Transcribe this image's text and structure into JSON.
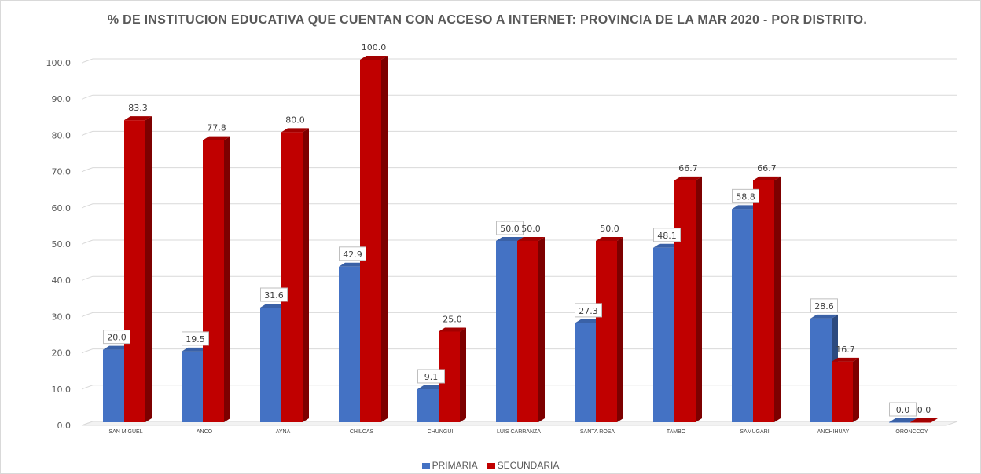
{
  "chart_data": {
    "type": "bar",
    "title": "% DE INSTITUCION EDUCATIVA QUE CUENTAN CON ACCESO A INTERNET: PROVINCIA DE LA MAR 2020 - POR DISTRITO.",
    "categories": [
      "SAN MIGUEL",
      "ANCO",
      "AYNA",
      "CHILCAS",
      "CHUNGUI",
      "LUIS CARRANZA",
      "SANTA ROSA",
      "TAMBO",
      "SAMUGARI",
      "ANCHIHUAY",
      "ORONCCOY"
    ],
    "series": [
      {
        "name": "PRIMARIA",
        "color": "#4472c4",
        "values": [
          20.0,
          19.5,
          31.6,
          42.9,
          9.1,
          50.0,
          27.3,
          48.1,
          58.8,
          28.6,
          0.0
        ]
      },
      {
        "name": "SECUNDARIA",
        "color": "#c00000",
        "values": [
          83.3,
          77.8,
          80.0,
          100.0,
          25.0,
          50.0,
          50.0,
          66.7,
          66.7,
          16.7,
          0.0
        ]
      }
    ],
    "ylim": [
      0,
      100
    ],
    "yticks": [
      "0.0",
      "10.0",
      "20.0",
      "30.0",
      "40.0",
      "50.0",
      "60.0",
      "70.0",
      "80.0",
      "90.0",
      "100.0"
    ],
    "grid": true,
    "legend_position": "bottom",
    "xlabel": "",
    "ylabel": ""
  }
}
